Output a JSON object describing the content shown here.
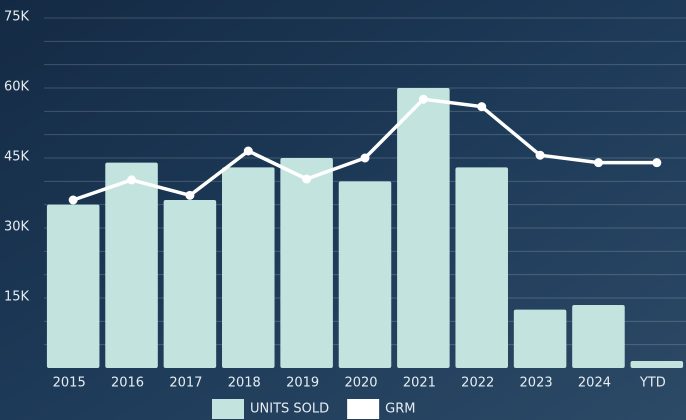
{
  "chart_data": {
    "type": "bar_line",
    "categories": [
      "2015",
      "2016",
      "2017",
      "2018",
      "2019",
      "2020",
      "2021",
      "2022",
      "2023",
      "2024",
      "YTD"
    ],
    "series": [
      {
        "name": "UNITS SOLD",
        "type": "bar",
        "color": "#c3e4de",
        "values": [
          35000,
          44000,
          36000,
          43000,
          45000,
          40000,
          60000,
          43000,
          12500,
          13500,
          1500
        ]
      },
      {
        "name": "GRM",
        "type": "line",
        "color": "#ffffff",
        "values": [
          36000,
          40300,
          37000,
          46500,
          40500,
          45000,
          57600,
          56000,
          45600,
          44000,
          44000
        ]
      }
    ],
    "ylim": [
      0,
      75000
    ],
    "yticks": [
      {
        "value": 15000,
        "label": "15K"
      },
      {
        "value": 30000,
        "label": "30K"
      },
      {
        "value": 45000,
        "label": "45K"
      },
      {
        "value": 60000,
        "label": "60K"
      },
      {
        "value": 75000,
        "label": "75K"
      }
    ],
    "ygridlines": [
      5000,
      10000,
      15000,
      20000,
      25000,
      30000,
      35000,
      40000,
      45000,
      50000,
      55000,
      60000,
      65000,
      70000,
      75000
    ],
    "grid": true,
    "legend": "bottom"
  }
}
